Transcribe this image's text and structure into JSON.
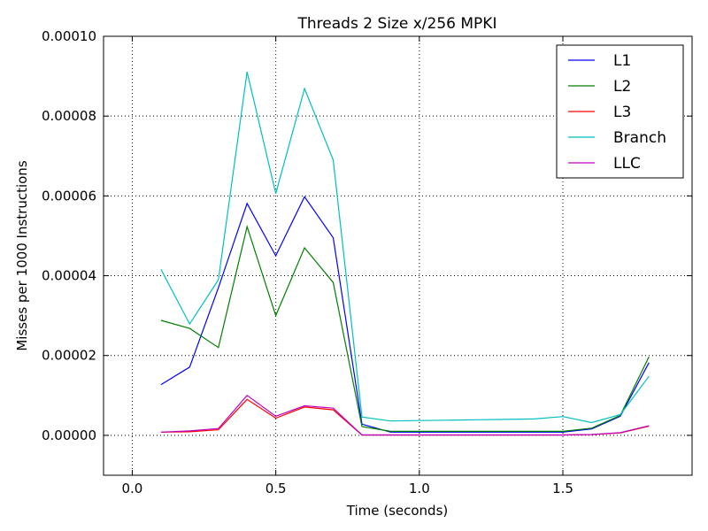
{
  "chart_data": {
    "type": "line",
    "title": "Threads 2 Size x/256 MPKI",
    "xlabel": "Time (seconds)",
    "ylabel": "Misses per 1000 Instructions",
    "xlim": [
      -0.1,
      1.95
    ],
    "ylim": [
      -1e-05,
      0.0001
    ],
    "x_ticks": [
      0.0,
      0.5,
      1.0,
      1.5
    ],
    "x_tick_labels": [
      "0.0",
      "0.5",
      "1.0",
      "1.5"
    ],
    "y_ticks": [
      0.0,
      2e-05,
      4e-05,
      6e-05,
      8e-05,
      0.0001
    ],
    "y_tick_labels": [
      "0.00000",
      "0.00002",
      "0.00004",
      "0.00006",
      "0.00008",
      "0.00010"
    ],
    "grid": true,
    "legend_position": "top-right",
    "x": [
      0.1,
      0.2,
      0.3,
      0.4,
      0.5,
      0.6,
      0.7,
      0.8,
      0.9,
      1.0,
      1.1,
      1.2,
      1.3,
      1.4,
      1.5,
      1.6,
      1.7,
      1.8
    ],
    "series": [
      {
        "name": "L1",
        "color": "#0000ff",
        "values": [
          1.27e-05,
          1.71e-05,
          3.7e-05,
          5.81e-05,
          4.5e-05,
          5.98e-05,
          4.95e-05,
          2.8e-06,
          8e-07,
          8e-07,
          8e-07,
          8e-07,
          8e-07,
          8e-07,
          8e-07,
          1.6e-06,
          4.8e-06,
          1.82e-05
        ]
      },
      {
        "name": "L2",
        "color": "#008000",
        "values": [
          2.88e-05,
          2.68e-05,
          2.2e-05,
          5.23e-05,
          3e-05,
          4.7e-05,
          3.83e-05,
          2.2e-06,
          1e-06,
          1e-06,
          1e-06,
          1e-06,
          1e-06,
          1e-06,
          1e-06,
          1.8e-06,
          5e-06,
          1.97e-05
        ]
      },
      {
        "name": "L3",
        "color": "#ff0000",
        "values": [
          8e-07,
          9e-07,
          1.4e-06,
          9e-06,
          4.3e-06,
          7.1e-06,
          6.4e-06,
          1e-07,
          1e-07,
          1e-07,
          1e-07,
          1e-07,
          1e-07,
          1e-07,
          1e-07,
          2e-07,
          6e-07,
          2.3e-06
        ]
      },
      {
        "name": "Branch",
        "color": "#00bfbf",
        "values": [
          4.16e-05,
          2.79e-05,
          3.9e-05,
          9.11e-05,
          6.06e-05,
          8.69e-05,
          6.9e-05,
          4.6e-06,
          3.6e-06,
          3.7e-06,
          3.8e-06,
          3.9e-06,
          4e-06,
          4.1e-06,
          4.7e-06,
          3.2e-06,
          5.2e-06,
          1.48e-05
        ]
      },
      {
        "name": "LLC",
        "color": "#bf00bf",
        "values": [
          8e-07,
          1.1e-06,
          1.7e-06,
          1e-05,
          4.8e-06,
          7.4e-06,
          6.8e-06,
          1e-07,
          1e-07,
          1e-07,
          1e-07,
          1e-07,
          1e-07,
          1e-07,
          1e-07,
          2e-07,
          7e-07,
          2.4e-06
        ]
      }
    ]
  }
}
